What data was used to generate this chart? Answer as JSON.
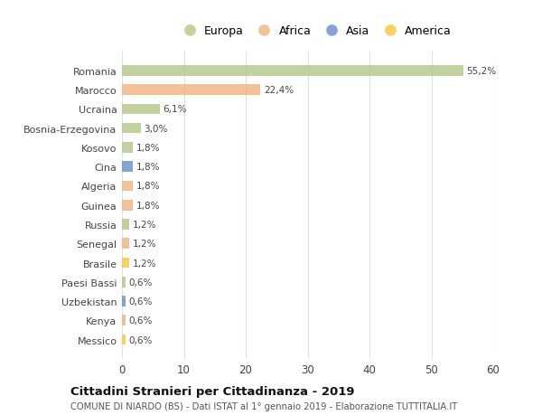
{
  "countries": [
    "Romania",
    "Marocco",
    "Ucraina",
    "Bosnia-Erzegovina",
    "Kosovo",
    "Cina",
    "Algeria",
    "Guinea",
    "Russia",
    "Senegal",
    "Brasile",
    "Paesi Bassi",
    "Uzbekistan",
    "Kenya",
    "Messico"
  ],
  "values": [
    55.2,
    22.4,
    6.1,
    3.0,
    1.8,
    1.8,
    1.8,
    1.8,
    1.2,
    1.2,
    1.2,
    0.6,
    0.6,
    0.6,
    0.6
  ],
  "labels": [
    "55,2%",
    "22,4%",
    "6,1%",
    "3,0%",
    "1,8%",
    "1,8%",
    "1,8%",
    "1,8%",
    "1,2%",
    "1,2%",
    "1,2%",
    "0,6%",
    "0,6%",
    "0,6%",
    "0,6%"
  ],
  "colors": [
    "#b5c98a",
    "#f0b482",
    "#b5c98a",
    "#b5c98a",
    "#b5c98a",
    "#6a8fce",
    "#f0b482",
    "#f0b482",
    "#b5c98a",
    "#f0b482",
    "#f5c842",
    "#b5c98a",
    "#6a8fce",
    "#f0b482",
    "#f5c842"
  ],
  "legend_labels": [
    "Europa",
    "Africa",
    "Asia",
    "America"
  ],
  "legend_colors": [
    "#b5c98a",
    "#f0b482",
    "#6a8fce",
    "#f5c842"
  ],
  "title": "Cittadini Stranieri per Cittadinanza - 2019",
  "subtitle": "COMUNE DI NIARDO (BS) - Dati ISTAT al 1° gennaio 2019 - Elaborazione TUTTITALIA.IT",
  "xlim": [
    0,
    60
  ],
  "xticks": [
    0,
    10,
    20,
    30,
    40,
    50,
    60
  ],
  "background_color": "#ffffff",
  "grid_color": "#e0e0e0",
  "bar_height": 0.55,
  "bar_alpha": 0.82
}
